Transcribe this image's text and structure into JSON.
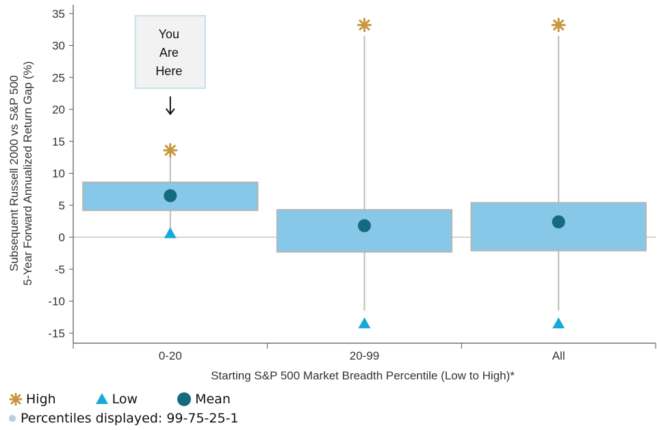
{
  "chart_data": {
    "type": "boxplot",
    "title": "",
    "xlabel": "Starting S&P 500 Market Breadth Percentile (Low to High)*",
    "ylabel_lines": [
      "Subsequent Russell 2000 vs S&P 500",
      "5-Year Forward Annualized Return Gap (%)"
    ],
    "ylim": [
      -15,
      35
    ],
    "yticks": [
      35,
      30,
      25,
      20,
      15,
      10,
      5,
      0,
      -5,
      -10,
      -15
    ],
    "categories": [
      "0-20",
      "20-99",
      "All"
    ],
    "series": [
      {
        "category": "0-20",
        "high": 13.6,
        "p75": 8.6,
        "p25": 4.2,
        "low": 0.6,
        "mean": 6.5,
        "whisker_top": 13.6,
        "whisker_bottom": 0.6
      },
      {
        "category": "20-99",
        "high": 33.2,
        "p75": 4.3,
        "p25": -2.3,
        "low": -13.5,
        "mean": 1.8,
        "whisker_top": 31.5,
        "whisker_bottom": -11.5
      },
      {
        "category": "All",
        "high": 33.2,
        "p75": 5.4,
        "p25": -2.1,
        "low": -13.5,
        "mean": 2.4,
        "whisker_top": 31.5,
        "whisker_bottom": -11.5
      }
    ],
    "annotation": {
      "lines": [
        "You",
        "Are",
        "Here"
      ],
      "category": "0-20"
    },
    "legend": {
      "placement": "bottom-left",
      "items": [
        {
          "label": "High",
          "marker": "asterisk-icon"
        },
        {
          "label": "Low",
          "marker": "triangle-icon"
        },
        {
          "label": "Mean",
          "marker": "circle-icon"
        }
      ],
      "note": "Percentiles displayed: 99-75-25-1"
    },
    "colors": {
      "box_fill": "#87c8e8",
      "box_stroke": "#b5b5b5",
      "whisker": "#bdbdbd",
      "high": "#c8963e",
      "low": "#18a9d6",
      "mean": "#136b7d",
      "axis": "#555555",
      "zero_line": "#aaaaaa"
    }
  }
}
